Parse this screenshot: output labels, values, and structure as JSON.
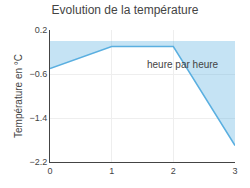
{
  "chart_data": {
    "type": "area",
    "title": "Evolution de la température",
    "y_label": "Température en °C",
    "annotations": [
      {
        "text": "heure par heure",
        "x": 2.15,
        "y": -0.42
      }
    ],
    "x": [
      0,
      1,
      2,
      3
    ],
    "values": [
      -0.5,
      -0.1,
      -0.1,
      -1.9
    ],
    "baseline": 0,
    "color": "#5aafe0",
    "xlim": [
      0,
      3
    ],
    "ylim": [
      -2.2,
      0.2
    ],
    "xticks": [
      0,
      1,
      2,
      3
    ],
    "yticks": [
      0.2,
      -0.6,
      -1.4,
      -2.2
    ],
    "grid": true
  }
}
